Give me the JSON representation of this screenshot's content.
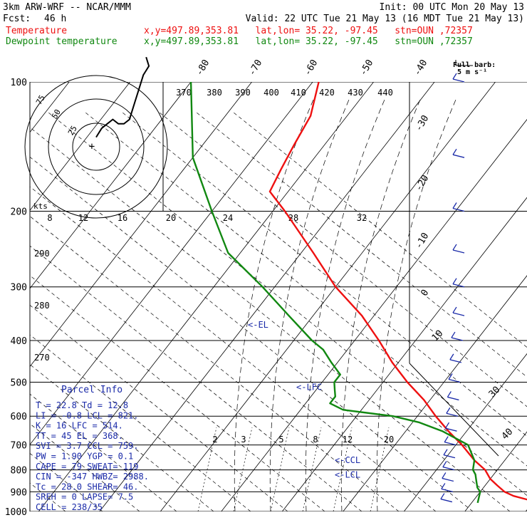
{
  "header": {
    "model": "3km ARW-WRF -- NCAR/MMM",
    "init": "Init: 00 UTC Mon 20 May 13",
    "fcst_label": "Fcst:",
    "fcst_value": "46 h",
    "valid": "Valid: 22 UTC Tue 21 May 13 (16 MDT Tue 21 May 13)",
    "temp_label": "Temperature",
    "dew_label": "Dewpoint temperature",
    "temp_loc": "x,y=497.89,353.81   lat,lon= 35.22, -97.45   stn=OUN ,72357",
    "dew_loc": "x,y=497.89,353.81   lat,lon= 35.22, -97.45   stn=OUN ,72357"
  },
  "legend": {
    "barb_title": "Full barb:",
    "barb_unit": "5 m s⁻¹"
  },
  "colors": {
    "temperature": "#ee1111",
    "dewpoint": "#118811",
    "text_blue": "#1a2aa8",
    "wind": "#1a2aa8"
  },
  "chart_data": {
    "type": "line",
    "title": "3km ARW-WRF -- NCAR/MMM",
    "pressure_levels": [
      1000,
      900,
      800,
      700,
      600,
      500,
      400,
      300,
      200,
      100
    ],
    "temperature_labels": [
      "-80",
      "-70",
      "-60",
      "-50",
      "-40",
      "-30",
      "-20",
      "-10",
      "0",
      "10",
      "30",
      "40"
    ],
    "mixing_ratio_labels": [
      "2",
      "3",
      "5",
      "8",
      "12",
      "20"
    ],
    "theta_labels": [
      "290",
      "280",
      "270"
    ],
    "theta_e_labels": [
      "370",
      "380",
      "390",
      "400",
      "410",
      "420",
      "430",
      "440"
    ],
    "hodograph_speed_labels": [
      "8",
      "12",
      "16",
      "20",
      "24",
      "28",
      "32"
    ],
    "hodograph_ring_labels": [
      "25",
      "50",
      "75"
    ],
    "hodograph_unit": "kts",
    "series": [
      {
        "name": "Temperature",
        "points": [
          [
            955,
            31
          ],
          [
            940,
            29
          ],
          [
            920,
            26
          ],
          [
            900,
            24
          ],
          [
            870,
            22
          ],
          [
            840,
            20
          ],
          [
            800,
            18
          ],
          [
            760,
            15
          ],
          [
            700,
            11
          ],
          [
            650,
            7
          ],
          [
            600,
            3
          ],
          [
            550,
            -1
          ],
          [
            500,
            -6
          ],
          [
            450,
            -11
          ],
          [
            400,
            -16
          ],
          [
            350,
            -22
          ],
          [
            300,
            -30
          ],
          [
            250,
            -38
          ],
          [
            200,
            -48
          ],
          [
            180,
            -53
          ],
          [
            160,
            -54
          ],
          [
            140,
            -55
          ],
          [
            120,
            -56
          ],
          [
            100,
            -59
          ]
        ]
      },
      {
        "name": "Dewpoint temperature",
        "points": [
          [
            955,
            21
          ],
          [
            900,
            20
          ],
          [
            880,
            19
          ],
          [
            850,
            18
          ],
          [
            820,
            17
          ],
          [
            800,
            16
          ],
          [
            760,
            15
          ],
          [
            700,
            12
          ],
          [
            650,
            6
          ],
          [
            620,
            1
          ],
          [
            600,
            -4
          ],
          [
            580,
            -13
          ],
          [
            560,
            -16
          ],
          [
            540,
            -16
          ],
          [
            520,
            -17
          ],
          [
            500,
            -18
          ],
          [
            480,
            -18
          ],
          [
            450,
            -21
          ],
          [
            420,
            -24
          ],
          [
            400,
            -27
          ],
          [
            350,
            -34
          ],
          [
            300,
            -42
          ],
          [
            250,
            -52
          ],
          [
            200,
            -60
          ],
          [
            150,
            -70
          ],
          [
            100,
            -80
          ]
        ]
      }
    ],
    "parcel_levels": [
      {
        "label": "<-EL",
        "p": 368
      },
      {
        "label": "<-LFC",
        "p": 514
      },
      {
        "label": "<-CCL",
        "p": 759
      },
      {
        "label": "<-LCL",
        "p": 821
      }
    ],
    "wind_profile": [
      {
        "p": 100,
        "u": 5,
        "v": 4
      },
      {
        "p": 150,
        "u": 8,
        "v": 5
      },
      {
        "p": 200,
        "u": 12,
        "v": 8
      },
      {
        "p": 250,
        "u": 13,
        "v": 9
      },
      {
        "p": 300,
        "u": 14,
        "v": 9
      },
      {
        "p": 350,
        "u": 14,
        "v": 8
      },
      {
        "p": 400,
        "u": 13,
        "v": 8
      },
      {
        "p": 450,
        "u": 12,
        "v": 9
      },
      {
        "p": 500,
        "u": 11,
        "v": 9
      },
      {
        "p": 550,
        "u": 9,
        "v": 9
      },
      {
        "p": 600,
        "u": 7,
        "v": 8
      },
      {
        "p": 650,
        "u": 6,
        "v": 7
      },
      {
        "p": 700,
        "u": 5,
        "v": 7
      },
      {
        "p": 750,
        "u": 4,
        "v": 6
      },
      {
        "p": 800,
        "u": 2,
        "v": 8
      },
      {
        "p": 850,
        "u": 1,
        "v": 8
      },
      {
        "p": 900,
        "u": 0,
        "v": 7
      },
      {
        "p": 950,
        "u": -1,
        "v": 6
      }
    ],
    "hodograph_trace": [
      [
        0,
        6
      ],
      [
        2,
        8
      ],
      [
        4,
        9
      ],
      [
        6,
        10
      ],
      [
        8,
        9
      ],
      [
        10,
        9
      ],
      [
        12,
        10
      ],
      [
        13,
        12
      ],
      [
        14,
        14
      ],
      [
        15,
        16
      ],
      [
        16,
        18
      ],
      [
        17,
        20
      ],
      [
        18,
        21
      ],
      [
        19,
        22
      ],
      [
        18,
        24
      ]
    ]
  },
  "parcel_info": {
    "title": "Parcel Info",
    "rows": [
      "T  =    22.8  Td =  12.8",
      "LI =    -0.8  LCL =  821.",
      "K  =      16  LFC =  514.",
      "TT =      45  EL  =  368.",
      "SVI =    3.7  CCL =  759.",
      "PW =   1.90  YGP =    0.1",
      "CAPE =    79  SWEAT=  119",
      "CIN =   -347  HWBZ= 2988.",
      "Tc =   28.0  SHEAR=   46.",
      "SREH =     0  LAPSE=   7.5",
      "CELL = 238/35"
    ]
  }
}
